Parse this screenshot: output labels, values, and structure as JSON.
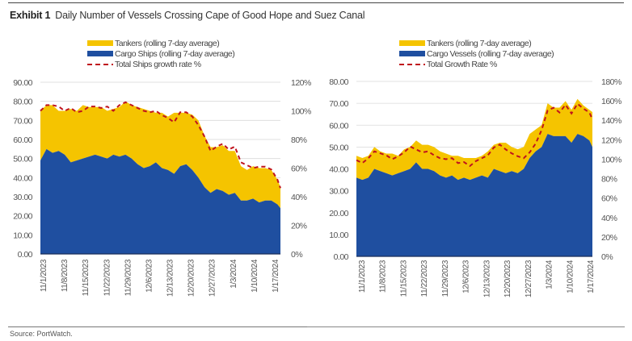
{
  "header": {
    "exhibit_label": "Exhibit 1",
    "title": "Daily Number of Vessels Crossing Cape of Good Hope and Suez Canal"
  },
  "footer": {
    "source": "Source: PortWatch."
  },
  "colors": {
    "tankers": "#F5C400",
    "cargo": "#1F4FA0",
    "growth": "#C0141C",
    "grid": "#d9d9d9"
  },
  "chart_data": [
    {
      "type": "area",
      "title": "Cape of Good Hope",
      "stacked": true,
      "legend": [
        "Tankers (rolling 7-day average)",
        "Cargo Ships (rolling 7-day average)",
        "Total Ships growth rate %"
      ],
      "legend_placement": "top-center",
      "xlabel": "",
      "ylabel": "",
      "y2label": "",
      "ylim": [
        0,
        90
      ],
      "y2lim": [
        0,
        120
      ],
      "yticks": [
        "0.00",
        "10.00",
        "20.00",
        "30.00",
        "40.00",
        "50.00",
        "60.00",
        "70.00",
        "80.00",
        "90.00"
      ],
      "y2ticks": [
        "0%",
        "20%",
        "40%",
        "60%",
        "80%",
        "100%",
        "120%"
      ],
      "xticks": [
        "11/1/2023",
        "11/8/2023",
        "11/15/2023",
        "11/22/2023",
        "11/29/2023",
        "12/6/2023",
        "12/13/2023",
        "12/20/2023",
        "12/27/2023",
        "1/3/2024",
        "1/10/2024",
        "1/17/2024"
      ],
      "grid": true,
      "x_days_from_start": [
        0,
        2,
        4,
        6,
        8,
        10,
        12,
        14,
        16,
        18,
        20,
        22,
        24,
        26,
        28,
        30,
        32,
        34,
        36,
        38,
        40,
        42,
        44,
        46,
        48,
        50,
        52,
        54,
        56,
        58,
        60,
        62,
        64,
        66,
        68,
        70,
        72,
        74,
        76,
        78,
        79
      ],
      "series": [
        {
          "name": "Cargo Ships (rolling 7-day average)",
          "values": [
            49,
            55,
            53,
            54,
            52,
            48,
            49,
            50,
            51,
            52,
            51,
            50,
            52,
            51,
            52,
            50,
            47,
            45,
            46,
            48,
            45,
            44,
            42,
            46,
            47,
            44,
            40,
            35,
            32,
            34,
            33,
            31,
            32,
            28,
            28,
            29,
            27,
            28,
            28,
            26,
            24
          ]
        },
        {
          "name": "Tankers (rolling 7-day average)",
          "values": [
            26,
            23,
            25,
            21,
            23,
            28,
            26,
            28,
            26,
            25,
            26,
            25,
            24,
            26,
            28,
            28,
            30,
            31,
            29,
            26,
            29,
            28,
            32,
            28,
            27,
            29,
            30,
            27,
            24,
            22,
            24,
            23,
            22,
            18,
            16,
            17,
            18,
            17,
            16,
            13,
            11
          ]
        },
        {
          "name": "Total Ships growth rate %",
          "axis": "right",
          "values": [
            100,
            104,
            104,
            103,
            100,
            102,
            99,
            100,
            103,
            103,
            102,
            103,
            100,
            104,
            106,
            104,
            102,
            100,
            99,
            100,
            97,
            95,
            92,
            99,
            99,
            96,
            90,
            82,
            72,
            75,
            77,
            73,
            75,
            64,
            62,
            60,
            61,
            61,
            59,
            52,
            46
          ]
        }
      ]
    },
    {
      "type": "area",
      "title": "Suez Canal",
      "stacked": true,
      "legend": [
        "Tankers (rolling 7-day average)",
        "Cargo Vessels (rolling 7-day average)",
        "Total Growth Rate %"
      ],
      "legend_placement": "top-center",
      "xlabel": "",
      "ylabel": "",
      "y2label": "",
      "ylim": [
        0,
        80
      ],
      "y2lim": [
        0,
        180
      ],
      "yticks": [
        "0.00",
        "10.00",
        "20.00",
        "30.00",
        "40.00",
        "50.00",
        "60.00",
        "70.00",
        "80.00"
      ],
      "y2ticks": [
        "0%",
        "20%",
        "40%",
        "60%",
        "80%",
        "100%",
        "120%",
        "140%",
        "160%",
        "180%"
      ],
      "xticks": [
        "11/1/2023",
        "11/8/2023",
        "11/15/2023",
        "11/22/2023",
        "11/29/2023",
        "12/6/2023",
        "12/13/2023",
        "12/20/2023",
        "12/27/2023",
        "1/3/2024",
        "1/10/2024",
        "1/17/2024"
      ],
      "grid": true,
      "x_days_from_start": [
        0,
        2,
        4,
        6,
        8,
        10,
        12,
        14,
        16,
        18,
        20,
        22,
        24,
        26,
        28,
        30,
        32,
        34,
        36,
        38,
        40,
        42,
        44,
        46,
        48,
        50,
        52,
        54,
        56,
        58,
        60,
        62,
        64,
        66,
        68,
        70,
        72,
        74,
        76,
        78,
        79
      ],
      "series": [
        {
          "name": "Cargo Vessels (rolling 7-day average)",
          "values": [
            36,
            35,
            36,
            40,
            39,
            38,
            37,
            38,
            39,
            40,
            43,
            40,
            40,
            39,
            37,
            36,
            37,
            35,
            36,
            35,
            36,
            37,
            36,
            40,
            39,
            38,
            39,
            38,
            40,
            45,
            48,
            50,
            56,
            55,
            55,
            55,
            52,
            56,
            55,
            53,
            50
          ]
        },
        {
          "name": "Tankers (rolling 7-day average)",
          "values": [
            10,
            10,
            10,
            10,
            9,
            9,
            10,
            8,
            10,
            10,
            10,
            11,
            11,
            11,
            11,
            11,
            9,
            11,
            9,
            10,
            9,
            9,
            12,
            11,
            13,
            14,
            11,
            11,
            10,
            11,
            10,
            10,
            14,
            13,
            13,
            16,
            15,
            16,
            14,
            14,
            16
          ]
        },
        {
          "name": "Total Growth Rate %",
          "axis": "right",
          "values": [
            99,
            96,
            101,
            108,
            106,
            104,
            100,
            103,
            107,
            113,
            110,
            107,
            108,
            104,
            101,
            100,
            101,
            96,
            97,
            93,
            98,
            101,
            104,
            112,
            115,
            110,
            106,
            103,
            101,
            107,
            116,
            130,
            150,
            153,
            148,
            156,
            147,
            157,
            152,
            148,
            141
          ]
        }
      ]
    }
  ]
}
